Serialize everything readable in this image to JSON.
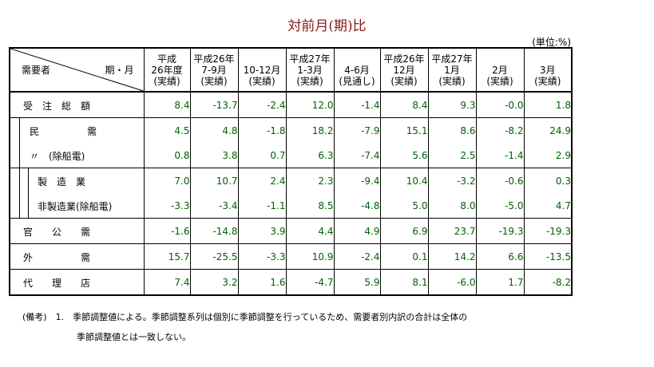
{
  "title": "対前月(期)比",
  "unit": "(単位:%)",
  "header": {
    "corner_left": "需要者",
    "corner_right": "期・月",
    "columns": [
      [
        "平成",
        "26年度",
        "(実績)"
      ],
      [
        "平成26年",
        "7‐9月",
        "(実績)"
      ],
      [
        "",
        "10‐12月",
        "(実績)"
      ],
      [
        "平成27年",
        "1‐3月",
        "(実績)"
      ],
      [
        "",
        "4‐6月",
        "(見通し)"
      ],
      [
        "平成26年",
        "12月",
        "(実績)"
      ],
      [
        "平成27年",
        "1月",
        "(実績)"
      ],
      [
        "",
        "2月",
        "(実績)"
      ],
      [
        "",
        "3月",
        "(実績)"
      ]
    ]
  },
  "rows": [
    {
      "label": "受　注　総　額",
      "values": [
        "8.4",
        "-13.7",
        "-2.4",
        "12.0",
        "-1.4",
        "8.4",
        "9.3",
        "-0.0",
        "1.8"
      ]
    },
    {
      "label": "民　　　　　需",
      "values": [
        "4.5",
        "4.8",
        "-1.8",
        "18.2",
        "-7.9",
        "15.1",
        "8.6",
        "-8.2",
        "24.9"
      ]
    },
    {
      "label": "〃　(除船電)",
      "values": [
        "0.8",
        "3.8",
        "0.7",
        "6.3",
        "-7.4",
        "5.6",
        "2.5",
        "-1.4",
        "2.9"
      ]
    },
    {
      "label": "製　造　業",
      "values": [
        "7.0",
        "10.7",
        "2.4",
        "2.3",
        "-9.4",
        "10.4",
        "-3.2",
        "-0.6",
        "0.3"
      ]
    },
    {
      "label": "非製造業(除船電)",
      "values": [
        "-3.3",
        "-3.4",
        "-1.1",
        "8.5",
        "-4.8",
        "5.0",
        "8.0",
        "-5.0",
        "4.7"
      ]
    },
    {
      "label": "官　　公　　需",
      "values": [
        "-1.6",
        "-14.8",
        "3.9",
        "4.4",
        "4.9",
        "6.9",
        "23.7",
        "-19.3",
        "-19.3"
      ]
    },
    {
      "label": "外　　　　　需",
      "values": [
        "15.7",
        "-25.5",
        "-3.3",
        "10.9",
        "-2.4",
        "0.1",
        "14.2",
        "6.6",
        "-13.5"
      ]
    },
    {
      "label": "代　　理　　店",
      "values": [
        "7.4",
        "3.2",
        "1.6",
        "-4.7",
        "5.9",
        "8.1",
        "-6.0",
        "1.7",
        "-8.2"
      ]
    }
  ],
  "notes": {
    "line1": "(備考)　1.　季節調整値による。季節調整系列は個別に季節調整を行っているため、需要者別内訳の合計は全体の",
    "line2": "季節調整値とは一致しない。"
  }
}
